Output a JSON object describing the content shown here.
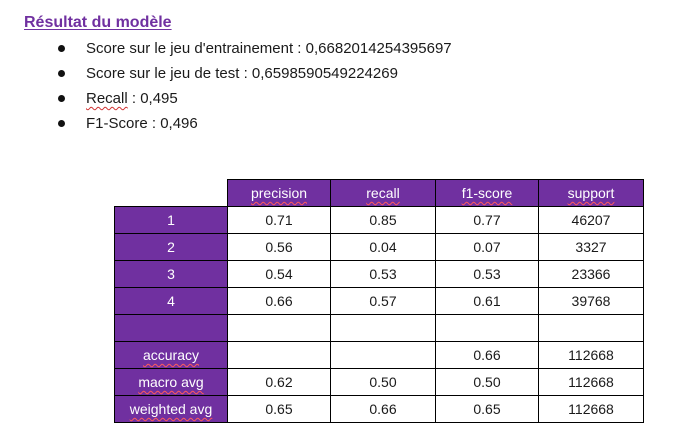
{
  "section": {
    "title": "Résultat du modèle"
  },
  "bullets": [
    {
      "label": "Score sur le jeu d'entrainement :",
      "value": "0,6682014254395697"
    },
    {
      "label": "Score sur le jeu de test :",
      "value": "0,6598590549224269"
    },
    {
      "label": "Recall",
      "value": ": 0,495"
    },
    {
      "label": "F1-Score",
      "value": ": 0,496"
    }
  ],
  "table": {
    "columns": [
      "precision",
      "recall",
      "f1-score",
      "support"
    ],
    "rows": [
      {
        "label": "1",
        "cells": [
          "0.71",
          "0.85",
          "0.77",
          "46207"
        ]
      },
      {
        "label": "2",
        "cells": [
          "0.56",
          "0.04",
          "0.07",
          "3327"
        ]
      },
      {
        "label": "3",
        "cells": [
          "0.54",
          "0.53",
          "0.53",
          "23366"
        ]
      },
      {
        "label": "4",
        "cells": [
          "0.66",
          "0.57",
          "0.61",
          "39768"
        ]
      },
      {
        "label": "",
        "cells": [
          "",
          "",
          "",
          ""
        ]
      },
      {
        "label": "accuracy",
        "cells": [
          "",
          "",
          "0.66",
          "112668"
        ]
      },
      {
        "label": "macro avg",
        "cells": [
          "0.62",
          "0.50",
          "0.50",
          "112668"
        ]
      },
      {
        "label": "weighted avg",
        "cells": [
          "0.65",
          "0.66",
          "0.65",
          "112668"
        ]
      }
    ]
  },
  "colors": {
    "accent": "#7030a0",
    "header_text": "#ffffff",
    "spellcheck_underline": "#d03030"
  }
}
